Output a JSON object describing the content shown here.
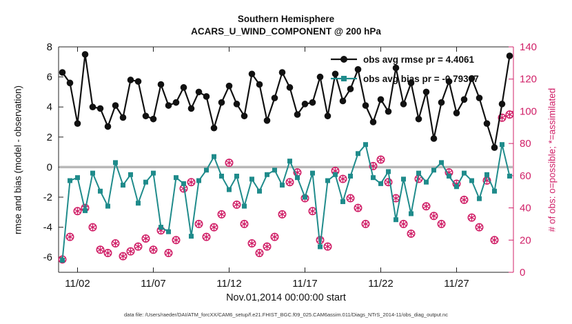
{
  "chart_data": {
    "type": "line",
    "title": "Southern Hemisphere",
    "subtitle": "ACARS_U_WIND_COMPONENT @ 200 hPa",
    "xlabel": "Nov.01,2014 00:00:00 start",
    "ylabel_left": "rmse and bias (model - observation)",
    "ylabel_right": "# of obs: o=possible; *=assimilated",
    "caption": "data file: /Users/raeder/DAI/ATM_forcXX/CAM6_setup/f.e21.FHIST_BGC.f09_025.CAM6assim.011/Diags_NTrS_2014-11/obs_diag_output.nc",
    "colors": {
      "rmse": "#111111",
      "bias": "#1f8b8b",
      "obs": "#d01f67",
      "zero_line": "#b8b8b8",
      "axis": "#222222"
    },
    "x_axis": {
      "min": 0.75,
      "max": 30.75,
      "ticks": [
        {
          "day": 2,
          "label": "11/02"
        },
        {
          "day": 7,
          "label": "11/07"
        },
        {
          "day": 12,
          "label": "11/12"
        },
        {
          "day": 17,
          "label": "11/17"
        },
        {
          "day": 22,
          "label": "11/22"
        },
        {
          "day": 27,
          "label": "11/27"
        }
      ]
    },
    "left_axis": {
      "min": -7,
      "max": 8,
      "ticks": [
        8,
        6,
        4,
        2,
        0,
        -2,
        -4,
        -6
      ]
    },
    "right_axis": {
      "min": 0,
      "max": 140,
      "ticks": [
        0,
        20,
        40,
        60,
        80,
        100,
        120,
        140
      ]
    },
    "x_start_day": 1,
    "x_step_days": 0.5,
    "series": [
      {
        "name": "rmse",
        "legend": "obs avg rmse pr = 4.4061",
        "marker": "circle",
        "axis": "left",
        "color": "#111111",
        "values": [
          6.3,
          5.6,
          2.9,
          7.5,
          4.0,
          3.9,
          2.7,
          4.1,
          3.3,
          5.8,
          5.7,
          3.4,
          3.2,
          5.5,
          4.1,
          4.3,
          5.3,
          3.9,
          5.0,
          4.7,
          2.6,
          4.3,
          5.4,
          4.2,
          3.4,
          6.2,
          5.5,
          3.1,
          4.6,
          6.3,
          5.3,
          3.5,
          4.2,
          4.3,
          6.0,
          3.4,
          6.2,
          4.4,
          5.2,
          6.5,
          4.1,
          3.0,
          4.5,
          3.7,
          6.6,
          4.2,
          5.6,
          3.2,
          5.0,
          1.9,
          4.3,
          5.7,
          3.6,
          4.5,
          5.9,
          4.6,
          2.9,
          1.3,
          4.2,
          7.4
        ]
      },
      {
        "name": "bias",
        "legend": "obs avg bias pr = -0.79367",
        "marker": "square",
        "axis": "left",
        "color": "#1f8b8b",
        "values": [
          -6.2,
          -0.9,
          -0.7,
          -2.9,
          -0.4,
          -1.6,
          -2.6,
          0.3,
          -1.2,
          -0.5,
          -2.4,
          -1.0,
          -0.4,
          -4.0,
          -4.3,
          -0.7,
          -1.1,
          -4.6,
          -0.9,
          -0.2,
          0.7,
          -0.6,
          -1.5,
          -0.6,
          -2.6,
          -0.8,
          -1.6,
          -0.5,
          -0.2,
          -1.2,
          0.4,
          -0.7,
          -2.0,
          -0.4,
          -5.3,
          -0.9,
          -0.5,
          -2.3,
          -0.6,
          0.9,
          1.5,
          -0.7,
          -1.1,
          -0.3,
          -3.5,
          -0.8,
          -3.1,
          -0.4,
          -1.0,
          -0.2,
          0.3,
          -0.6,
          -1.3,
          -0.4,
          -0.9,
          -2.1,
          -0.5,
          -1.6,
          1.5,
          -0.6
        ]
      },
      {
        "name": "possible",
        "marker": "open-circle",
        "axis": "right",
        "color": "#d01f67",
        "values": [
          8,
          22,
          38,
          40,
          28,
          14,
          12,
          18,
          10,
          13,
          16,
          21,
          14,
          26,
          12,
          20,
          52,
          56,
          30,
          22,
          28,
          36,
          68,
          42,
          30,
          18,
          12,
          16,
          22,
          36,
          56,
          62,
          46,
          38,
          20,
          16,
          63,
          58,
          46,
          40,
          30,
          66,
          70,
          56,
          46,
          30,
          24,
          58,
          41,
          35,
          30,
          62,
          55,
          45,
          34,
          28,
          57,
          20,
          96,
          98
        ]
      },
      {
        "name": "assimilated",
        "marker": "asterisk",
        "axis": "right",
        "color": "#d01f67",
        "values": [
          8,
          22,
          38,
          40,
          28,
          14,
          12,
          18,
          10,
          13,
          16,
          21,
          14,
          26,
          12,
          20,
          52,
          56,
          30,
          22,
          28,
          36,
          68,
          42,
          30,
          18,
          12,
          16,
          22,
          36,
          56,
          62,
          46,
          38,
          20,
          16,
          63,
          58,
          46,
          40,
          30,
          66,
          70,
          56,
          46,
          30,
          24,
          58,
          41,
          35,
          30,
          62,
          55,
          45,
          34,
          28,
          57,
          20,
          96,
          98
        ]
      }
    ]
  }
}
